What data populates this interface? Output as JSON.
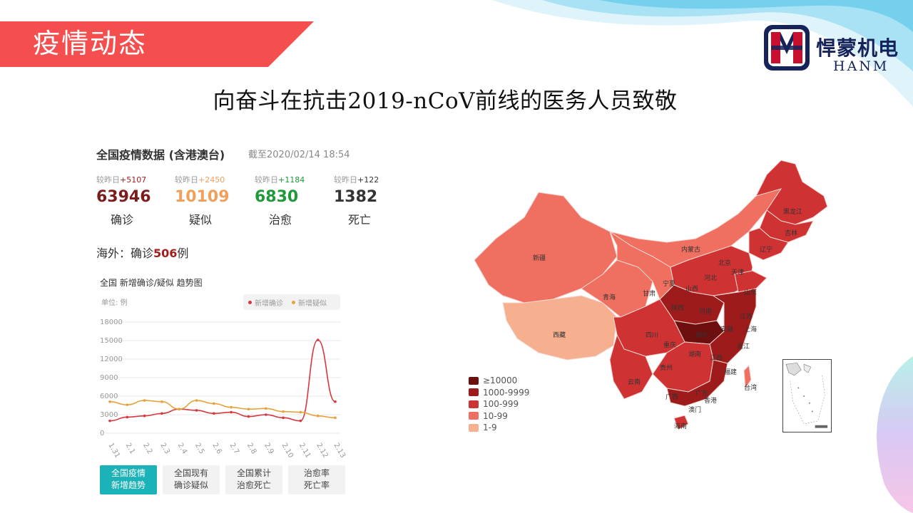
{
  "slide": {
    "section_title": "疫情动态",
    "headline": "向奋斗在抗击2019-nCoV前线的医务人员致敬",
    "logo_cn": "悍蒙机电",
    "logo_en": "HANM",
    "colors": {
      "banner": "#f44e4e",
      "accent": "#1bb3b8",
      "logo_blue": "#15235a",
      "logo_red": "#c8102e"
    }
  },
  "panel": {
    "title": "全国疫情数据 (含港澳台)",
    "timestamp": "截至2020/02/14 18:54",
    "stats": [
      {
        "delta_prefix": "较昨日",
        "delta": "+5107",
        "value": "63946",
        "label": "确诊",
        "color": "#7c1d1d",
        "delta_color": "#a31d1d"
      },
      {
        "delta_prefix": "较昨日",
        "delta": "+2450",
        "value": "10109",
        "label": "疑似",
        "color": "#f0a05a",
        "delta_color": "#f0a05a"
      },
      {
        "delta_prefix": "较昨日",
        "delta": "+1184",
        "value": "6830",
        "label": "治愈",
        "color": "#1e9a3a",
        "delta_color": "#1e9a3a"
      },
      {
        "delta_prefix": "较昨日",
        "delta": "+122",
        "value": "1382",
        "label": "死亡",
        "color": "#333333",
        "delta_color": "#333333"
      }
    ],
    "overseas_prefix": "海外：确诊",
    "overseas_value": "506",
    "overseas_suffix": "例",
    "trend_title": "全国 新增确诊/疑似 趋势图",
    "trend_unit": "单位: 例",
    "tabs": [
      {
        "line1": "全国疫情",
        "line2": "新增趋势",
        "active": true
      },
      {
        "line1": "全国现有",
        "line2": "确诊疑似",
        "active": false
      },
      {
        "line1": "全国累计",
        "line2": "治愈死亡",
        "active": false
      },
      {
        "line1": "治愈率",
        "line2": "死亡率",
        "active": false
      }
    ]
  },
  "chart_data": {
    "type": "line",
    "title": "全国 新增确诊/疑似 趋势图",
    "ylabel": "单位: 例",
    "x": [
      "1.31",
      "2.1",
      "2.2",
      "2.3",
      "2.4",
      "2.5",
      "2.6",
      "2.7",
      "2.8",
      "2.9",
      "2.10",
      "2.11",
      "2.12",
      "2.13"
    ],
    "ylim": [
      0,
      18000
    ],
    "yticks": [
      0,
      3000,
      6000,
      9000,
      12000,
      15000,
      18000
    ],
    "grid": true,
    "legend": "top-right",
    "series": [
      {
        "name": "新增确诊",
        "color": "#d9363e",
        "values": [
          2000,
          2600,
          2800,
          3200,
          3900,
          3700,
          3200,
          3400,
          2700,
          3000,
          2500,
          2000,
          15100,
          5100
        ]
      },
      {
        "name": "新增疑似",
        "color": "#e8a23c",
        "values": [
          5100,
          4600,
          5300,
          5100,
          3900,
          5300,
          4800,
          4200,
          3900,
          4000,
          3500,
          3400,
          2800,
          2500
        ]
      }
    ]
  },
  "map": {
    "legend": [
      {
        "label": "≥10000",
        "color": "#6e0f0f"
      },
      {
        "label": "1000-9999",
        "color": "#9e1b1b"
      },
      {
        "label": "100-999",
        "color": "#cf3232"
      },
      {
        "label": "10-99",
        "color": "#ef7060"
      },
      {
        "label": "1-9",
        "color": "#f6b08f"
      }
    ],
    "labels": [
      "黑龙江",
      "吉林",
      "辽宁",
      "内蒙古",
      "北京",
      "天津",
      "河北",
      "山西",
      "山东",
      "新疆",
      "青海",
      "甘肃",
      "宁夏",
      "陕西",
      "河南",
      "江苏",
      "上海",
      "安徽",
      "湖北",
      "四川",
      "重庆",
      "浙江",
      "西藏",
      "湖南",
      "江西",
      "贵州",
      "福建",
      "云南",
      "广西",
      "广东",
      "台湾",
      "香港",
      "澳门",
      "海南"
    ]
  }
}
